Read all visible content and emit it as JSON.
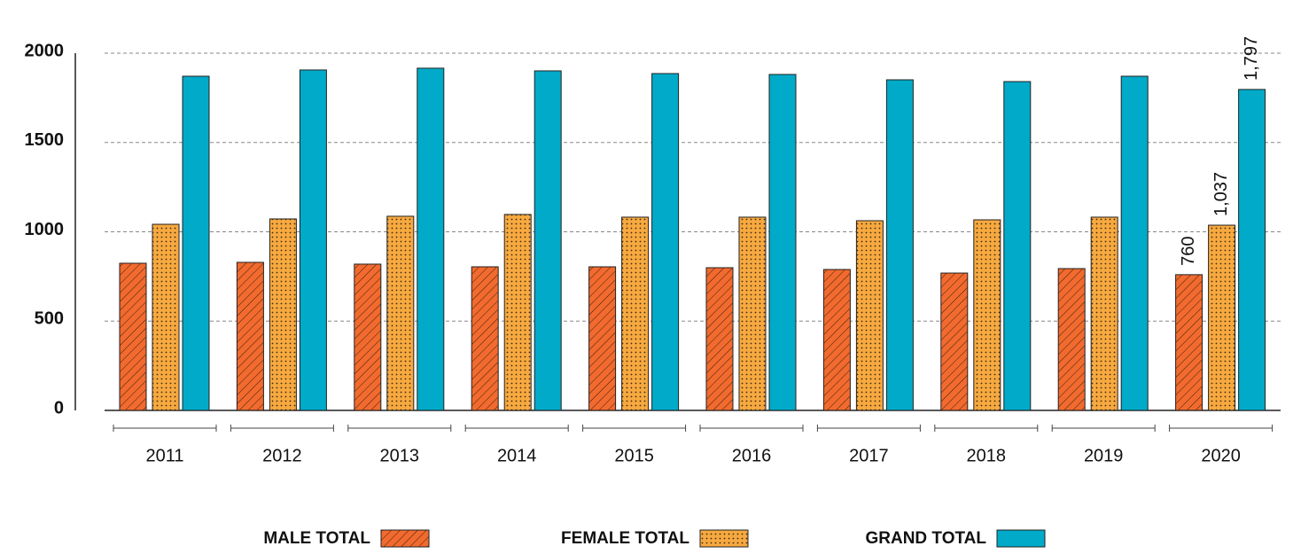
{
  "chart_data": {
    "type": "bar",
    "categories": [
      "2011",
      "2012",
      "2013",
      "2014",
      "2015",
      "2016",
      "2017",
      "2018",
      "2019",
      "2020"
    ],
    "series": [
      {
        "name": "MALE TOTAL",
        "color": "#f26a2e",
        "pattern": "hatch",
        "values": [
          824,
          829,
          819,
          804,
          804,
          799,
          789,
          769,
          794,
          760
        ],
        "value_labels": [
          null,
          null,
          null,
          null,
          null,
          null,
          null,
          null,
          null,
          "760"
        ]
      },
      {
        "name": "FEMALE TOTAL",
        "color": "#f7a940",
        "pattern": "dots",
        "values": [
          1042,
          1072,
          1087,
          1097,
          1082,
          1082,
          1062,
          1067,
          1082,
          1037
        ],
        "value_labels": [
          null,
          null,
          null,
          null,
          null,
          null,
          null,
          null,
          null,
          "1,037"
        ]
      },
      {
        "name": "GRAND TOTAL",
        "color": "#00aac8",
        "pattern": "solid",
        "values": [
          1871,
          1906,
          1916,
          1901,
          1886,
          1881,
          1851,
          1841,
          1871,
          1797
        ],
        "value_labels": [
          null,
          null,
          null,
          null,
          null,
          null,
          null,
          null,
          null,
          "1,797"
        ]
      }
    ],
    "ylim": [
      0,
      2000
    ],
    "yticks": [
      0,
      500,
      1000,
      1500,
      2000
    ],
    "grid": true
  }
}
